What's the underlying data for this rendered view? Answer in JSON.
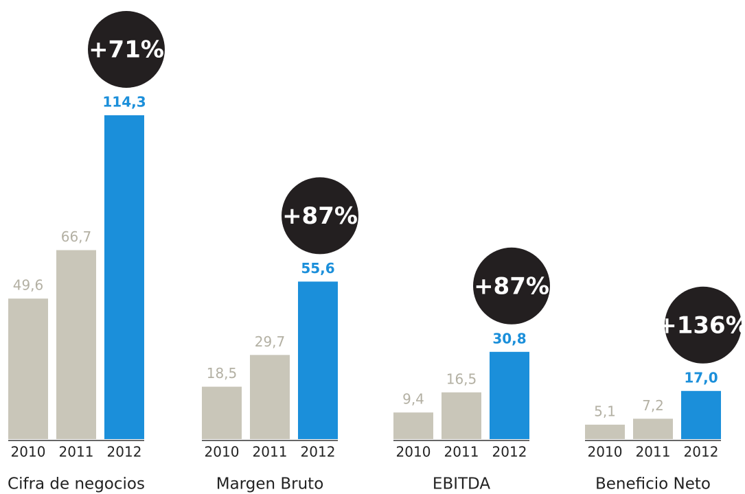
{
  "chart_data": [
    {
      "type": "bar",
      "title": "Cifra de negocios",
      "categories": [
        "2010",
        "2011",
        "2012"
      ],
      "values": [
        49.6,
        66.7,
        114.3
      ],
      "value_labels": [
        "49,6",
        "66,7",
        "114,3"
      ],
      "colors": [
        "#c9c6b9",
        "#c9c6b9",
        "#1b8fda"
      ],
      "annotation": "+71%"
    },
    {
      "type": "bar",
      "title": "Margen Bruto",
      "categories": [
        "2010",
        "2011",
        "2012"
      ],
      "values": [
        18.5,
        29.7,
        55.6
      ],
      "value_labels": [
        "18,5",
        "29,7",
        "55,6"
      ],
      "colors": [
        "#c9c6b9",
        "#c9c6b9",
        "#1b8fda"
      ],
      "annotation": "+87%"
    },
    {
      "type": "bar",
      "title": "EBITDA",
      "categories": [
        "2010",
        "2011",
        "2012"
      ],
      "values": [
        9.4,
        16.5,
        30.8
      ],
      "value_labels": [
        "9,4",
        "16,5",
        "30,8"
      ],
      "colors": [
        "#c9c6b9",
        "#c9c6b9",
        "#1b8fda"
      ],
      "annotation": "+87%"
    },
    {
      "type": "bar",
      "title": "Beneficio Neto",
      "categories": [
        "2010",
        "2011",
        "2012"
      ],
      "values": [
        5.1,
        7.2,
        17.0
      ],
      "value_labels": [
        "5,1",
        "7,2",
        "17,0"
      ],
      "colors": [
        "#c9c6b9",
        "#c9c6b9",
        "#1b8fda"
      ],
      "annotation": "+136%"
    }
  ]
}
